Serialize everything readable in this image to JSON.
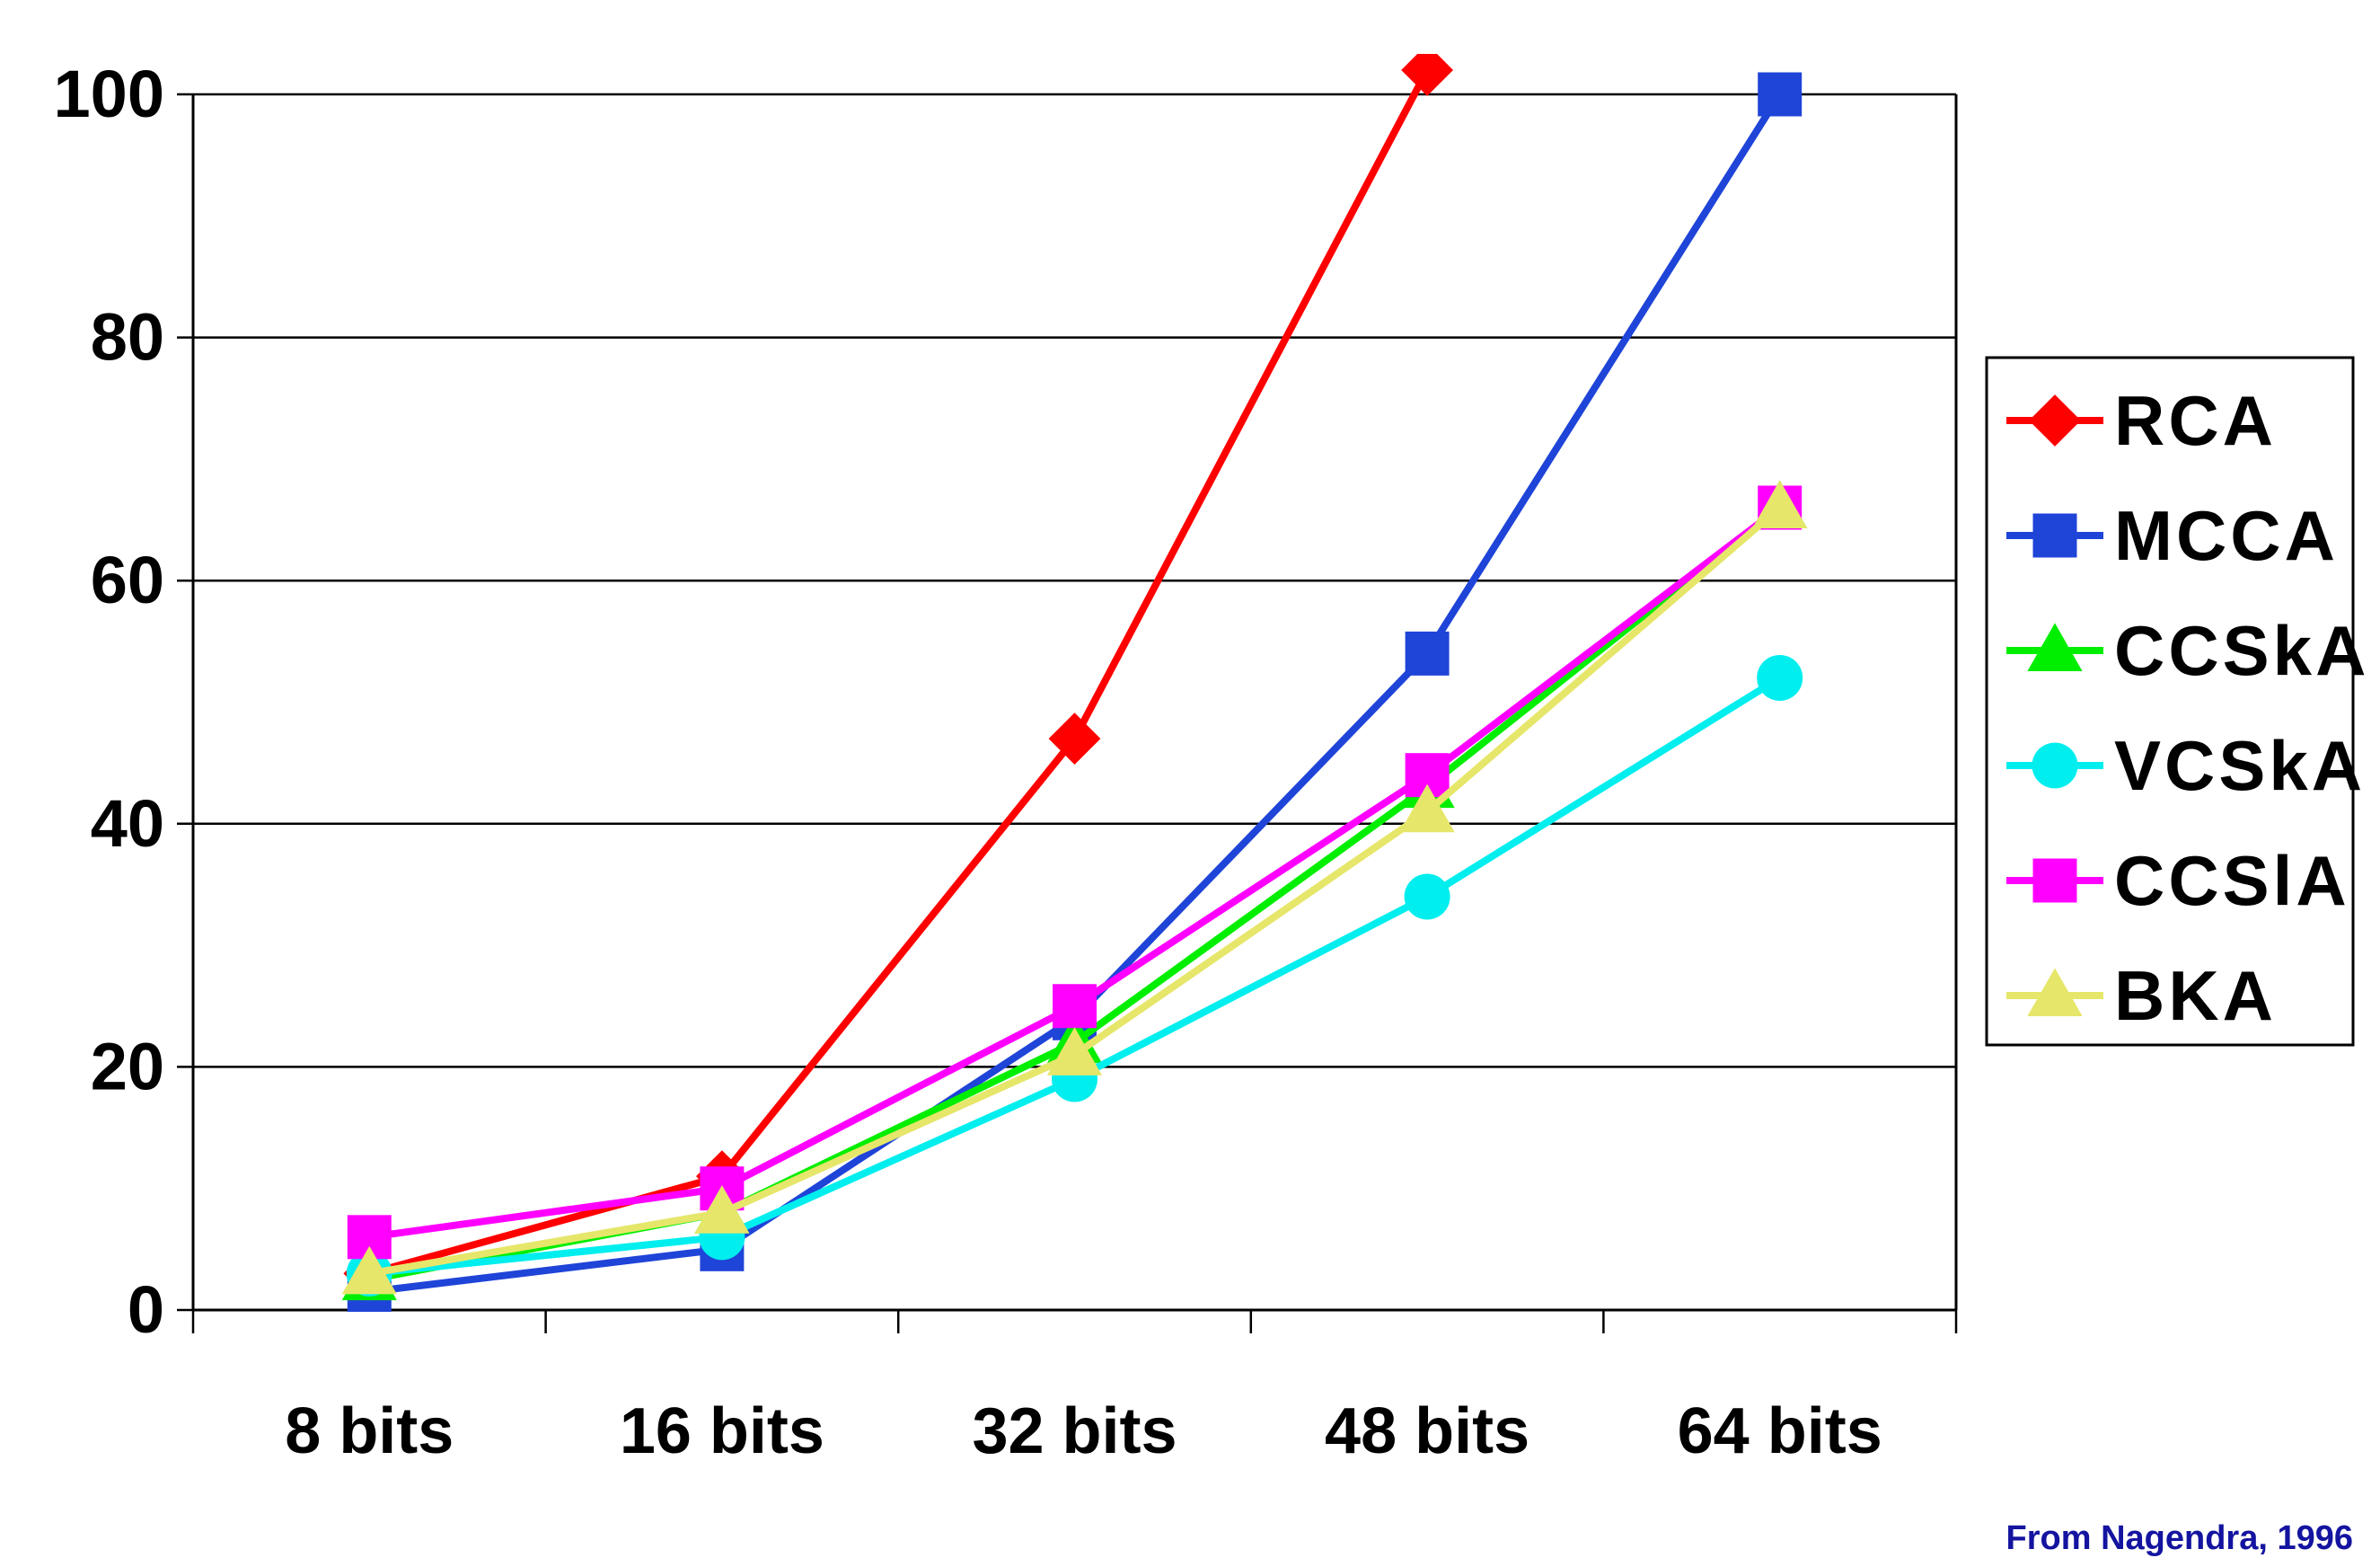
{
  "chart_data": {
    "type": "line",
    "categories": [
      "8 bits",
      "16 bits",
      "32 bits",
      "48 bits",
      "64 bits"
    ],
    "ylim": [
      0,
      100
    ],
    "yticks": [
      0,
      20,
      40,
      60,
      80,
      100
    ],
    "grid": true,
    "legend_position": "right",
    "series": [
      {
        "name": "RCA",
        "color": "#ff0000",
        "marker": "diamond",
        "values": [
          3,
          11,
          47,
          102,
          null
        ]
      },
      {
        "name": "MCCA",
        "color": "#1f44d8",
        "marker": "square",
        "values": [
          1.5,
          5,
          24,
          54,
          100
        ]
      },
      {
        "name": "CCSkA",
        "color": "#00ee00",
        "marker": "triangle",
        "values": [
          2.5,
          8,
          22,
          43,
          66
        ]
      },
      {
        "name": "VCSkA",
        "color": "#00eeee",
        "marker": "circle",
        "values": [
          3,
          6,
          19,
          34,
          52
        ]
      },
      {
        "name": "CCSlA",
        "color": "#ff00ff",
        "marker": "square",
        "values": [
          6,
          10,
          25,
          44,
          66
        ]
      },
      {
        "name": "BKA",
        "color": "#e6e66a",
        "marker": "triangle",
        "values": [
          3,
          8,
          21,
          41,
          66
        ]
      }
    ]
  },
  "source_note": "From  Nagendra, 1996"
}
